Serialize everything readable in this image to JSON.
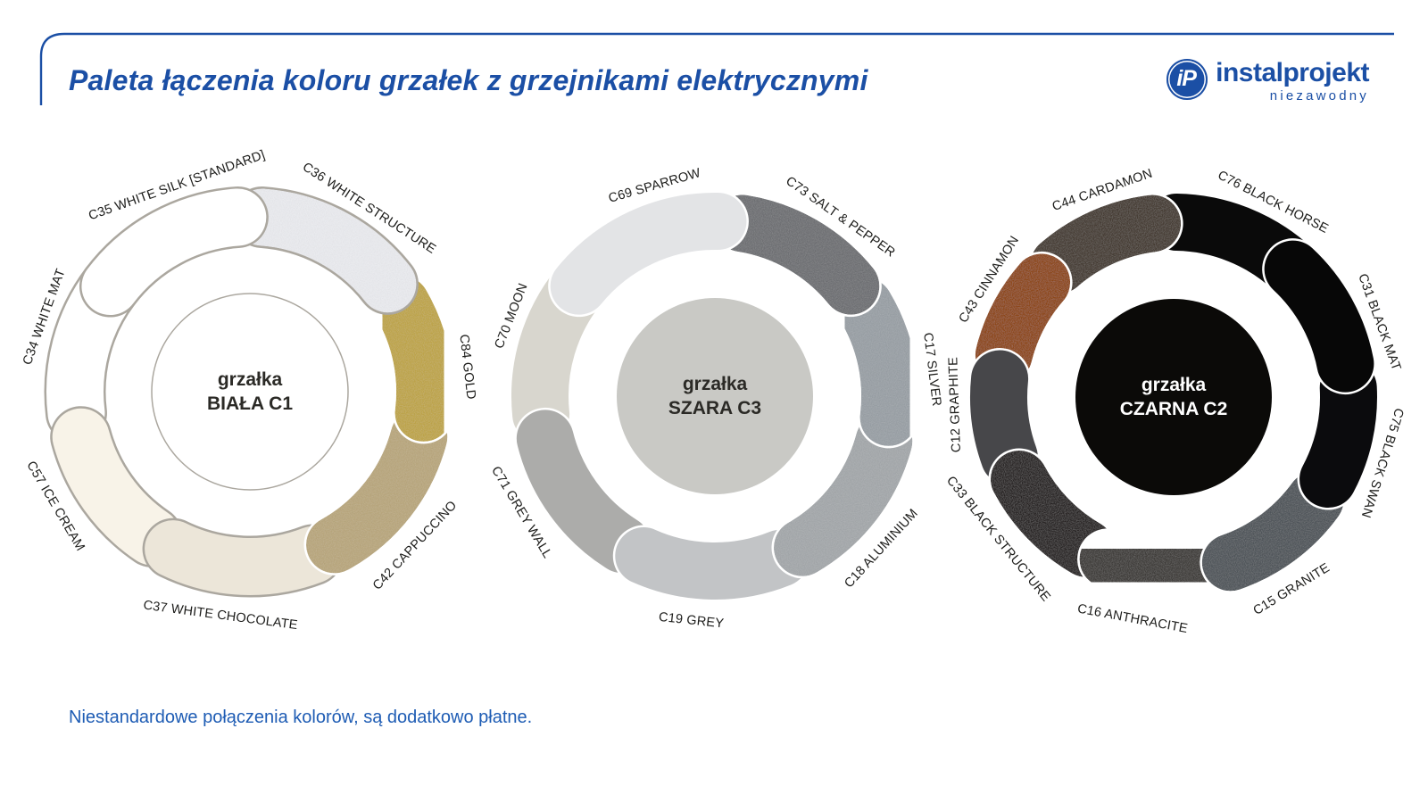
{
  "header": {
    "title": "Paleta łączenia koloru grzałek z grzejnikami elektrycznymi"
  },
  "logo": {
    "monogram": "iP",
    "brand": "instalprojekt",
    "tagline": "niezawodny"
  },
  "footer": {
    "note": "Niestandardowe połączenia kolorów, są dodatkowo płatne."
  },
  "colors": {
    "brand_blue": "#1b4fa5",
    "footer_blue": "#1e5cb4",
    "label_dark": "#1c1c1a"
  },
  "rings": [
    {
      "id": "biala-c1",
      "center": {
        "line1": "grzałka",
        "line2": "BIAŁA C1",
        "fill": "#ffffff",
        "text": "#2b2a26",
        "stroke": "#aba79f"
      },
      "segments": [
        {
          "label": "C36 WHITE STRUCTURE",
          "color": "#e9eaee",
          "outline": "#aba79f",
          "from": 5,
          "to": 61,
          "textured": true
        },
        {
          "label": "C84 GOLD",
          "color": "#bfa64b",
          "outline": "#ffffff",
          "from": 61,
          "to": 106,
          "textured": true
        },
        {
          "label": "C42 CAPPUCCINO",
          "color": "#b9a77e",
          "outline": "#ffffff",
          "from": 106,
          "to": 160,
          "textured": true
        },
        {
          "label": "C37 WHITE CHOCOLATE",
          "color": "#ece6d9",
          "outline": "#aba79f",
          "from": 160,
          "to": 215,
          "textured": false
        },
        {
          "label": "C57 ICE CREAM",
          "color": "#f8f3e8",
          "outline": "#aba79f",
          "from": 215,
          "to": 264,
          "textured": false
        },
        {
          "label": "C34 WHITE MAT",
          "color": "#ffffff",
          "outline": "#aba79f",
          "from": 264,
          "to": 316,
          "textured": false
        },
        {
          "label": "C35 WHITE SILK [STANDARD]",
          "color": "#ffffff",
          "outline": "#aba79f",
          "from": 316,
          "to": 365,
          "textured": false
        }
      ],
      "draw_order": [
        5,
        4,
        3,
        2,
        1,
        0,
        6
      ]
    },
    {
      "id": "szara-c3",
      "center": {
        "line1": "grzałka",
        "line2": "SZARA C3",
        "fill": "#c9c9c5",
        "text": "#2b2a26",
        "stroke": ""
      },
      "segments": [
        {
          "label": "C73 SALT & PEPPER",
          "color": "#6f7174",
          "outline": "#ffffff",
          "from": 10,
          "to": 60,
          "textured": true
        },
        {
          "label": "C17 SILVER",
          "color": "#9aa0a6",
          "outline": "#ffffff",
          "from": 60,
          "to": 106,
          "textured": true
        },
        {
          "label": "C18 ALUMINIUM",
          "color": "#a4a8ab",
          "outline": "#ffffff",
          "from": 106,
          "to": 159,
          "textured": true
        },
        {
          "label": "C19 GREY",
          "color": "#c2c4c6",
          "outline": "#ffffff",
          "from": 159,
          "to": 213,
          "textured": false
        },
        {
          "label": "C71 GREY WALL",
          "color": "#acacaa",
          "outline": "#ffffff",
          "from": 213,
          "to": 265,
          "textured": false
        },
        {
          "label": "C70 MOON",
          "color": "#d8d6ce",
          "outline": "#ffffff",
          "from": 265,
          "to": 318,
          "textured": false
        },
        {
          "label": "C69 SPARROW",
          "color": "#e3e4e6",
          "outline": "#ffffff",
          "from": 318,
          "to": 370,
          "textured": false
        }
      ],
      "draw_order": [
        5,
        4,
        3,
        2,
        1,
        0,
        6
      ]
    },
    {
      "id": "czarna-c2",
      "center": {
        "line1": "grzałka",
        "line2": "CZARNA C2",
        "fill": "#0b0a08",
        "text": "#ffffff",
        "stroke": ""
      },
      "segments": [
        {
          "label": "C76 BLACK HORSE",
          "color": "#0a0a0a",
          "outline": "#ffffff",
          "from": 2,
          "to": 52,
          "textured": false
        },
        {
          "label": "C31 BLACK MAT",
          "color": "#070707",
          "outline": "#ffffff",
          "from": 52,
          "to": 88,
          "textured": false
        },
        {
          "label": "C75 BLACK SWAN",
          "color": "#0b0b0d",
          "outline": "#ffffff",
          "from": 88,
          "to": 127,
          "textured": false
        },
        {
          "label": "C15 GRANITE",
          "color": "#51565c",
          "outline": "#ffffff",
          "from": 127,
          "to": 170,
          "textured": true
        },
        {
          "label": "C16 ANTHRACITE",
          "color": "#413c3a",
          "outline": "#ffffff",
          "from": 170,
          "to": 211,
          "textured": true
        },
        {
          "label": "C33 BLACK STRUCTURE",
          "color": "#2b2826",
          "outline": "#ffffff",
          "from": 211,
          "to": 251,
          "textured": true
        },
        {
          "label": "C12 GRAPHITE",
          "color": "#47474a",
          "outline": "#ffffff",
          "from": 251,
          "to": 285,
          "textured": false
        },
        {
          "label": "C43 CINNAMON",
          "color": "#8f4a1c",
          "outline": "#ffffff",
          "from": 285,
          "to": 320,
          "textured": true
        },
        {
          "label": "C44 CARDAMON",
          "color": "#463d35",
          "outline": "#ffffff",
          "from": 320,
          "to": 362,
          "textured": true
        }
      ],
      "draw_order": [
        0,
        8,
        7,
        6,
        5,
        4,
        3,
        2,
        1
      ]
    }
  ]
}
